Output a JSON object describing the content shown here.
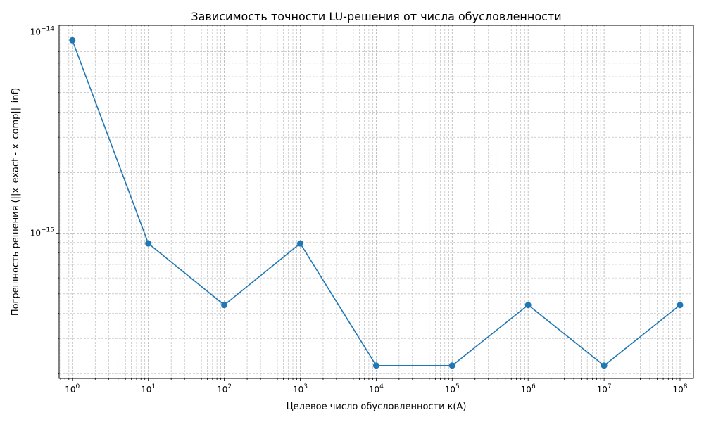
{
  "chart_data": {
    "type": "line",
    "title": "Зависимость точности LU-решения от числа обусловленности",
    "xlabel": "Целевое число обусловленности κ(A)",
    "ylabel": "Погрешность решения (||x_exact - x_comp||_inf)",
    "xscale": "log",
    "yscale": "log",
    "grid": true,
    "grid_style": "dashed",
    "xlim": [
      0.67,
      150000000
    ],
    "ylim": [
      1.9e-16,
      1.08e-14
    ],
    "x_ticks": [
      {
        "base": "10",
        "exp": "0"
      },
      {
        "base": "10",
        "exp": "1"
      },
      {
        "base": "10",
        "exp": "2"
      },
      {
        "base": "10",
        "exp": "3"
      },
      {
        "base": "10",
        "exp": "4"
      },
      {
        "base": "10",
        "exp": "5"
      },
      {
        "base": "10",
        "exp": "6"
      },
      {
        "base": "10",
        "exp": "7"
      },
      {
        "base": "10",
        "exp": "8"
      }
    ],
    "y_ticks": [
      {
        "base": "10",
        "exp": "−15"
      },
      {
        "base": "10",
        "exp": "−14"
      }
    ],
    "series": [
      {
        "x": [
          1,
          10,
          100,
          1000,
          10000,
          100000,
          1000000,
          10000000,
          100000000
        ],
        "y": [
          9.1e-15,
          8.9e-16,
          4.4e-16,
          8.9e-16,
          2.2e-16,
          2.2e-16,
          4.4e-16,
          2.2e-16,
          4.4e-16
        ],
        "color": "#1f77b4",
        "marker": "circle"
      }
    ]
  }
}
